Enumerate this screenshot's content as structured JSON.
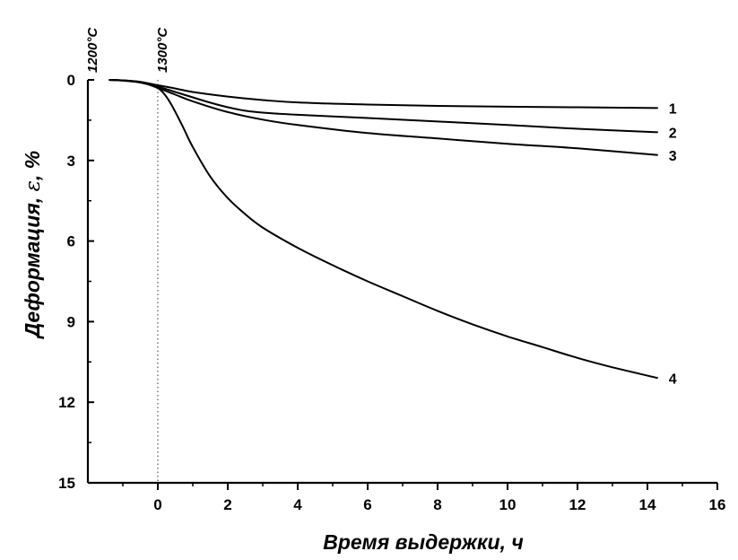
{
  "chart_data": {
    "type": "line",
    "title": "",
    "xlabel": "Время выдержки, ч",
    "ylabel_prefix": "Деформация, ",
    "ylabel_symbol": "ε",
    "ylabel_suffix": ", %",
    "xlim": [
      -2,
      16
    ],
    "ylim": [
      0,
      15
    ],
    "y_inverted": true,
    "x_ticks": [
      0,
      2,
      4,
      6,
      8,
      10,
      12,
      14,
      16
    ],
    "y_ticks": [
      0,
      3,
      6,
      9,
      12,
      15
    ],
    "grid": false,
    "reference_line": {
      "x": 0,
      "style": "dotted"
    },
    "temperature_marks": [
      {
        "x": -1.9,
        "label": "1200°C"
      },
      {
        "x": 0.1,
        "label": "1300°C"
      }
    ],
    "series": [
      {
        "name": "1",
        "x": [
          -1.4,
          -1.0,
          -0.6,
          -0.3,
          0,
          0.5,
          1,
          2,
          3,
          4,
          6,
          8,
          10,
          12,
          14.3
        ],
        "y": [
          0,
          0.02,
          0.06,
          0.12,
          0.2,
          0.32,
          0.45,
          0.62,
          0.75,
          0.84,
          0.92,
          0.97,
          1.0,
          1.02,
          1.05
        ]
      },
      {
        "name": "2",
        "x": [
          -1.4,
          -1.0,
          -0.6,
          -0.3,
          0,
          0.5,
          1,
          1.5,
          2,
          2.5,
          3,
          4,
          6,
          8,
          10,
          12,
          14.3
        ],
        "y": [
          0,
          0.02,
          0.07,
          0.14,
          0.25,
          0.45,
          0.65,
          0.85,
          1.02,
          1.15,
          1.22,
          1.3,
          1.42,
          1.55,
          1.68,
          1.82,
          1.95
        ]
      },
      {
        "name": "3",
        "x": [
          -1.4,
          -1.0,
          -0.6,
          -0.3,
          0,
          0.5,
          1,
          2,
          3,
          4,
          6,
          8,
          10,
          12,
          14.3
        ],
        "y": [
          0,
          0.03,
          0.08,
          0.16,
          0.3,
          0.55,
          0.8,
          1.2,
          1.48,
          1.68,
          1.98,
          2.18,
          2.38,
          2.55,
          2.8
        ]
      },
      {
        "name": "4",
        "x": [
          -1.4,
          -1.0,
          -0.6,
          -0.3,
          0,
          0.2,
          0.4,
          0.7,
          1,
          1.5,
          2,
          2.5,
          3,
          4,
          5,
          6,
          7,
          8,
          9,
          10,
          11,
          12,
          13,
          14.3
        ],
        "y": [
          0,
          0.02,
          0.06,
          0.14,
          0.3,
          0.55,
          0.95,
          1.7,
          2.5,
          3.6,
          4.4,
          5.0,
          5.5,
          6.25,
          6.9,
          7.5,
          8.05,
          8.6,
          9.1,
          9.55,
          9.95,
          10.35,
          10.7,
          11.1
        ]
      }
    ]
  }
}
